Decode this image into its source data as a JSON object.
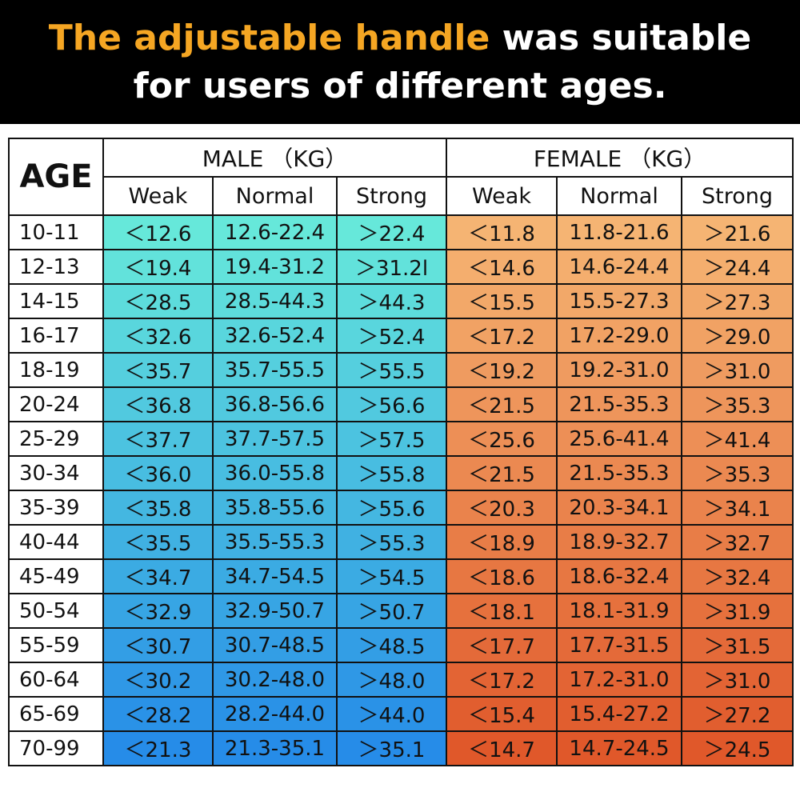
{
  "header": {
    "highlight": "The adjustable handle",
    "line1_rest": "was suitable",
    "line2": "for users of different ages."
  },
  "table": {
    "age_header": "AGE",
    "groups": [
      "MALE （KG）",
      "FEMALE （KG）"
    ],
    "subheaders": [
      "Weak",
      "Normal",
      "Strong",
      "Weak",
      "Normal",
      "Strong"
    ],
    "rows": [
      [
        "10-11",
        "＜12.6",
        "12.6-22.4",
        "＞22.4",
        "＜11.8",
        "11.8-21.6",
        "＞21.6"
      ],
      [
        "12-13",
        "＜19.4",
        "19.4-31.2",
        "＞31.2l",
        "＜14.6",
        "14.6-24.4",
        "＞24.4"
      ],
      [
        "14-15",
        "＜28.5",
        "28.5-44.3",
        "＞44.3",
        "＜15.5",
        "15.5-27.3",
        "＞27.3"
      ],
      [
        "16-17",
        "＜32.6",
        "32.6-52.4",
        "＞52.4",
        "＜17.2",
        "17.2-29.0",
        "＞29.0"
      ],
      [
        "18-19",
        "＜35.7",
        "35.7-55.5",
        "＞55.5",
        "＜19.2",
        "19.2-31.0",
        "＞31.0"
      ],
      [
        "20-24",
        "＜36.8",
        "36.8-56.6",
        "＞56.6",
        "＜21.5",
        "21.5-35.3",
        "＞35.3"
      ],
      [
        "25-29",
        "＜37.7",
        "37.7-57.5",
        "＞57.5",
        "＜25.6",
        "25.6-41.4",
        "＞41.4"
      ],
      [
        "30-34",
        "＜36.0",
        "36.0-55.8",
        "＞55.8",
        "＜21.5",
        "21.5-35.3",
        "＞35.3"
      ],
      [
        "35-39",
        "＜35.8",
        "35.8-55.6",
        "＞55.6",
        "＜20.3",
        "20.3-34.1",
        "＞34.1"
      ],
      [
        "40-44",
        "＜35.5",
        "35.5-55.3",
        "＞55.3",
        "＜18.9",
        "18.9-32.7",
        "＞32.7"
      ],
      [
        "45-49",
        "＜34.7",
        "34.7-54.5",
        "＞54.5",
        "＜18.6",
        "18.6-32.4",
        "＞32.4"
      ],
      [
        "50-54",
        "＜32.9",
        "32.9-50.7",
        "＞50.7",
        "＜18.1",
        "18.1-31.9",
        "＞31.9"
      ],
      [
        "55-59",
        "＜30.7",
        "30.7-48.5",
        "＞48.5",
        "＜17.7",
        "17.7-31.5",
        "＞31.5"
      ],
      [
        "60-64",
        "＜30.2",
        "30.2-48.0",
        "＞48.0",
        "＜17.2",
        "17.2-31.0",
        "＞31.0"
      ],
      [
        "65-69",
        "＜28.2",
        "28.2-44.0",
        "＞44.0",
        "＜15.4",
        "15.4-27.2",
        "＞27.2"
      ],
      [
        "70-99",
        "＜21.3",
        "21.3-35.1",
        "＞35.1",
        "＜14.7",
        "14.7-24.5",
        "＞24.5"
      ]
    ]
  }
}
